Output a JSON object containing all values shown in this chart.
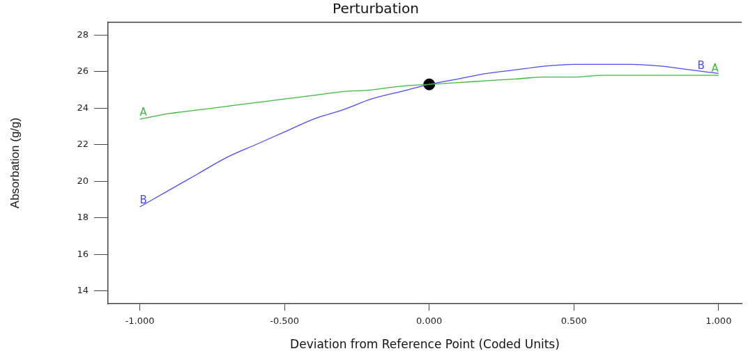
{
  "chart_data": {
    "type": "line",
    "title": "Perturbation",
    "xlabel": "Deviation from Reference Point (Coded Units)",
    "ylabel": "Absorbation (g/g)",
    "x": [
      -1,
      -0.9,
      -0.8,
      -0.7,
      -0.6,
      -0.5,
      -0.4,
      -0.3,
      -0.2,
      -0.1,
      0,
      0.1,
      0.2,
      0.3,
      0.4,
      0.5,
      0.6,
      0.7,
      0.8,
      0.9,
      1
    ],
    "series": [
      {
        "name": "A",
        "color": "#3cb93c",
        "values": [
          23.4,
          23.7,
          23.9,
          24.1,
          24.3,
          24.5,
          24.7,
          24.9,
          25.0,
          25.2,
          25.3,
          25.4,
          25.5,
          25.6,
          25.7,
          25.7,
          25.8,
          25.8,
          25.8,
          25.8,
          25.8
        ]
      },
      {
        "name": "B",
        "color": "#4a4af5",
        "values": [
          18.6,
          19.5,
          20.4,
          21.3,
          22.0,
          22.7,
          23.4,
          23.9,
          24.5,
          24.9,
          25.3,
          25.6,
          25.9,
          26.1,
          26.3,
          26.4,
          26.4,
          26.4,
          26.3,
          26.1,
          25.9
        ]
      },
      {
        "type": "scatter",
        "color": "#000000",
        "x": [
          0
        ],
        "values": [
          25.3
        ],
        "marker": "circle"
      }
    ],
    "xlim": [
      -1.11,
      1.08
    ],
    "ylim": [
      13.3,
      28.7
    ],
    "xticks": [
      {
        "value": -1,
        "label": "-1.000"
      },
      {
        "value": -0.5,
        "label": "-0.500"
      },
      {
        "value": 0,
        "label": "0.000"
      },
      {
        "value": 0.5,
        "label": "0.500"
      },
      {
        "value": 1,
        "label": "1.000"
      }
    ],
    "yticks": [
      14,
      16,
      18,
      20,
      22,
      24,
      26,
      28
    ],
    "grid": false,
    "legend": false,
    "marker": "none",
    "line_style": "solid"
  }
}
